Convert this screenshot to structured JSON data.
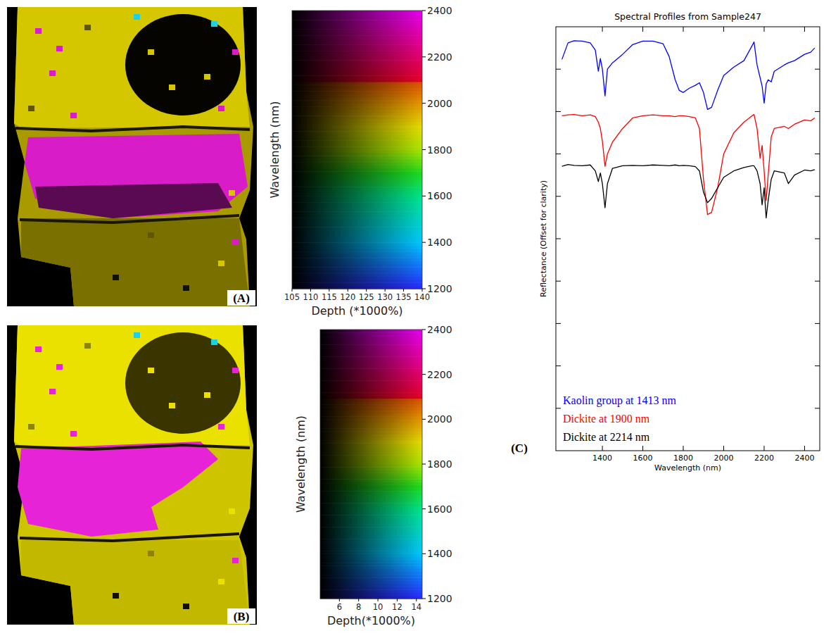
{
  "chart_data": [
    {
      "type": "colorbar",
      "annotations": [
        "(A)"
      ],
      "x_label": "Depth (*1000%)",
      "y_label": "Wavelength (nm)",
      "xlim": [
        105,
        140
      ],
      "xticks": [
        105,
        110,
        115,
        120,
        125,
        130,
        135,
        140
      ],
      "ylim": [
        1200,
        2400
      ],
      "yticks": [
        1200,
        1400,
        1600,
        1800,
        2000,
        2200,
        2400
      ]
    },
    {
      "type": "colorbar",
      "annotations": [
        "(B)"
      ],
      "x_label": "Depth(*1000%)",
      "y_label": "Wavelength (nm)",
      "xlim": [
        4,
        14.6
      ],
      "xticks": [
        6,
        8,
        10,
        12,
        14
      ],
      "ylim": [
        1200,
        2400
      ],
      "yticks": [
        1200,
        1400,
        1600,
        1800,
        2000,
        2200,
        2400
      ]
    },
    {
      "type": "line",
      "annotations": [
        "(C)"
      ],
      "title": "Spectral Profiles from Sample247",
      "x_label": "Wavelength (nm)",
      "y_label": "Reflectance (Offset for clarity)",
      "xlim": [
        1170,
        2475
      ],
      "xticks": [
        1400,
        1600,
        1800,
        2000,
        2200,
        2400
      ],
      "ylim": [
        0,
        10
      ],
      "yticks": [
        1,
        2,
        3,
        4,
        5,
        6,
        7,
        8,
        9
      ],
      "tick_labels": "x",
      "legend": "lower left",
      "x": [
        1200,
        1230,
        1260,
        1300,
        1340,
        1365,
        1380,
        1390,
        1400,
        1413,
        1425,
        1450,
        1500,
        1550,
        1600,
        1650,
        1700,
        1730,
        1760,
        1780,
        1800,
        1830,
        1860,
        1880,
        1900,
        1920,
        1940,
        1970,
        2000,
        2050,
        2100,
        2140,
        2150,
        2165,
        2180,
        2190,
        2200,
        2210,
        2220,
        2235,
        2250,
        2300,
        2320,
        2350,
        2400,
        2430,
        2450
      ],
      "series": [
        {
          "name": "Kaolin group at 1413 nm",
          "color": "#0000ff",
          "values": [
            9.23,
            9.62,
            9.67,
            9.66,
            9.62,
            9.45,
            8.95,
            9.25,
            9.0,
            8.37,
            9.0,
            9.15,
            9.35,
            9.58,
            9.66,
            9.66,
            9.6,
            9.3,
            8.75,
            8.5,
            8.45,
            8.55,
            8.62,
            8.68,
            8.45,
            8.05,
            8.1,
            8.5,
            8.85,
            9.05,
            9.2,
            9.55,
            9.64,
            9.1,
            8.8,
            8.6,
            8.2,
            8.65,
            8.75,
            8.7,
            8.95,
            9.1,
            9.15,
            9.2,
            9.35,
            9.4,
            9.5
          ]
        },
        {
          "name": "Dickite at 1900 nm",
          "color": "#ff0000",
          "values": [
            7.9,
            7.92,
            7.93,
            7.9,
            7.92,
            7.88,
            7.75,
            7.6,
            7.3,
            6.71,
            7.0,
            7.28,
            7.6,
            7.85,
            7.9,
            7.92,
            7.9,
            7.9,
            7.88,
            7.9,
            7.9,
            7.88,
            7.85,
            7.6,
            6.4,
            5.57,
            5.62,
            6.2,
            7.0,
            7.5,
            7.75,
            7.9,
            7.93,
            7.6,
            6.9,
            7.2,
            6.6,
            5.9,
            6.5,
            7.4,
            7.6,
            7.65,
            7.6,
            7.7,
            7.8,
            7.78,
            7.85
          ]
        },
        {
          "name": "Dickite at 2214 nm",
          "color": "#000000",
          "values": [
            6.71,
            6.75,
            6.73,
            6.72,
            6.74,
            6.6,
            6.35,
            6.55,
            6.3,
            5.73,
            6.3,
            6.66,
            6.72,
            6.73,
            6.72,
            6.74,
            6.73,
            6.72,
            6.74,
            6.72,
            6.73,
            6.72,
            6.7,
            6.6,
            6.1,
            5.85,
            5.95,
            6.2,
            6.45,
            6.6,
            6.68,
            6.72,
            6.72,
            6.6,
            6.3,
            5.8,
            6.2,
            5.49,
            5.9,
            6.4,
            6.6,
            6.55,
            6.3,
            6.5,
            6.62,
            6.6,
            6.63
          ]
        }
      ]
    }
  ]
}
